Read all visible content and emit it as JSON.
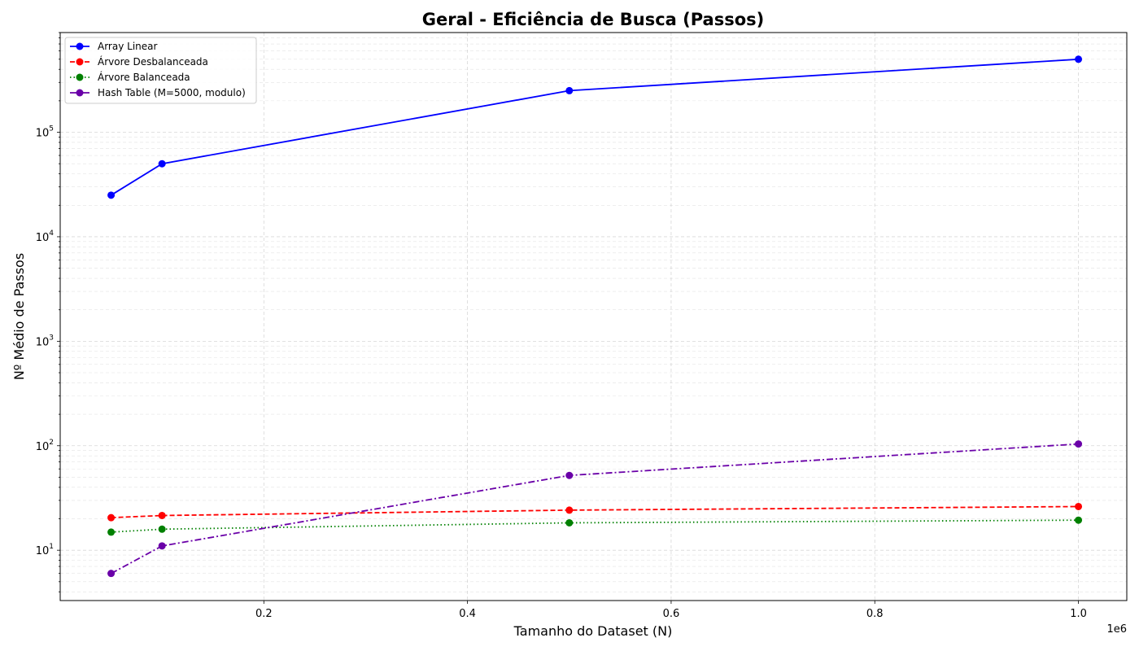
{
  "chart_data": {
    "type": "line",
    "title": "Geral - Eficiência de Busca (Passos)",
    "xlabel": "Tamanho do Dataset (N)",
    "ylabel": "Nº Médio de Passos",
    "x_offset_label": "1e6",
    "x_scale": "linear",
    "y_scale": "log",
    "xlim": [
      0,
      1.0475
    ],
    "ylim": [
      3.3,
      900000
    ],
    "x_ticks": [
      0.2,
      0.4,
      0.6,
      0.8,
      1.0
    ],
    "x_tick_labels": [
      "0.2",
      "0.4",
      "0.6",
      "0.8",
      "1.0"
    ],
    "y_ticks": [
      10,
      100,
      1000,
      10000,
      100000
    ],
    "grid": true,
    "legend_position": "upper-left",
    "x": [
      0.05,
      0.1,
      0.5,
      1.0
    ],
    "series": [
      {
        "name": "Array Linear",
        "values": [
          25000,
          50000,
          250000,
          500000
        ],
        "color": "#0000ff",
        "linestyle": "solid"
      },
      {
        "name": "Árvore Desbalanceada",
        "values": [
          20.5,
          21.5,
          24.2,
          26.2
        ],
        "color": "#ff0000",
        "linestyle": "dashed"
      },
      {
        "name": "Árvore Balanceada",
        "values": [
          14.9,
          15.9,
          18.3,
          19.4
        ],
        "color": "#008000",
        "linestyle": "dotted"
      },
      {
        "name": "Hash Table (M=5000, modulo)",
        "values": [
          6.0,
          11.0,
          52.0,
          104.0
        ],
        "color": "#6a00a8",
        "linestyle": "dashdot"
      }
    ]
  }
}
